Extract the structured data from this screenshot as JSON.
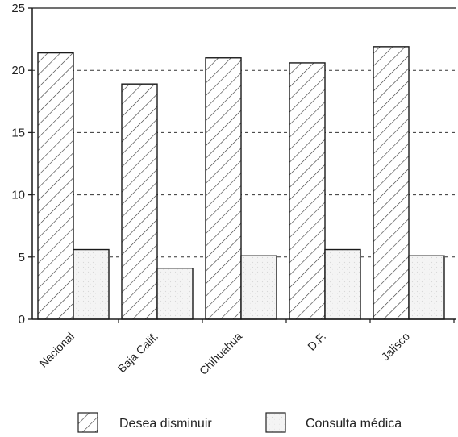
{
  "chart_data": {
    "type": "bar",
    "categories": [
      "Nacional",
      "Baja Calif.",
      "Chihuahua",
      "D.F.",
      "Jalisco"
    ],
    "series": [
      {
        "name": "Desea disminuir",
        "values": [
          21.4,
          18.9,
          21.0,
          20.6,
          21.9
        ]
      },
      {
        "name": "Consulta médica",
        "values": [
          5.6,
          4.1,
          5.1,
          5.6,
          5.1
        ]
      }
    ],
    "title": "",
    "xlabel": "",
    "ylabel": "",
    "ylim": [
      0,
      25
    ],
    "yticks": [
      "0",
      "5",
      "10",
      "15",
      "20",
      "25"
    ],
    "grid": "horizontal-dashed",
    "legend_position": "bottom",
    "colors": {
      "axis": "#1a1a1a",
      "grid": "#333333",
      "desea_fill": "#ffffff",
      "consulta_fill": "#f4f4f4"
    }
  }
}
